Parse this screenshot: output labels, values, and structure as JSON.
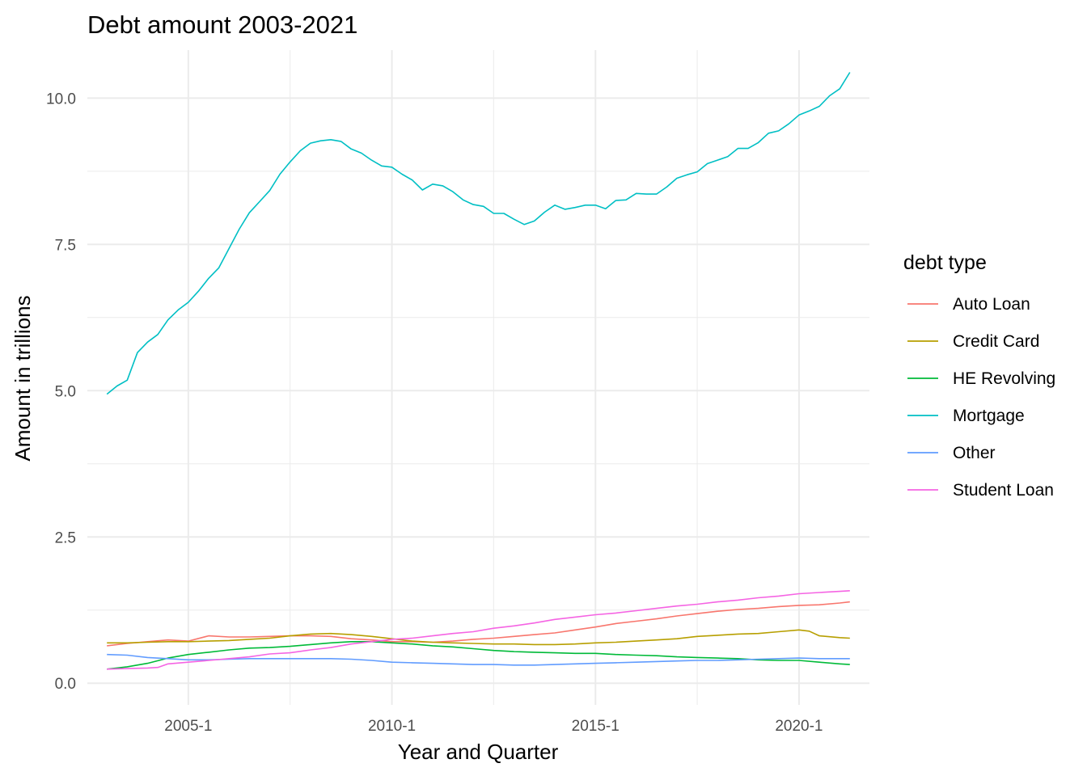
{
  "chart_data": {
    "type": "line",
    "title": "Debt amount 2003-2021",
    "xlabel": "Year and Quarter",
    "ylabel": "Amount in trillions",
    "legend_title": "debt type",
    "legend_position": "right",
    "grid": true,
    "x_range": [
      2003.0,
      2021.25
    ],
    "ylim": [
      0.0,
      10.45
    ],
    "x_ticks": [
      {
        "value": 2005.0,
        "label": "2005-1"
      },
      {
        "value": 2010.0,
        "label": "2010-1"
      },
      {
        "value": 2015.0,
        "label": "2015-1"
      },
      {
        "value": 2020.0,
        "label": "2020-1"
      }
    ],
    "y_ticks": [
      {
        "value": 0.0,
        "label": "0.0"
      },
      {
        "value": 2.5,
        "label": "2.5"
      },
      {
        "value": 5.0,
        "label": "5.0"
      },
      {
        "value": 7.5,
        "label": "7.5"
      },
      {
        "value": 10.0,
        "label": "10.0"
      }
    ],
    "series": [
      {
        "name": "Auto Loan",
        "color": "#F8766D",
        "points": [
          [
            2003.0,
            0.64
          ],
          [
            2003.5,
            0.68
          ],
          [
            2004.0,
            0.71
          ],
          [
            2004.5,
            0.74
          ],
          [
            2005.0,
            0.72
          ],
          [
            2005.5,
            0.81
          ],
          [
            2006.0,
            0.79
          ],
          [
            2006.5,
            0.79
          ],
          [
            2007.0,
            0.8
          ],
          [
            2007.5,
            0.81
          ],
          [
            2008.0,
            0.81
          ],
          [
            2008.5,
            0.8
          ],
          [
            2009.0,
            0.76
          ],
          [
            2009.5,
            0.74
          ],
          [
            2010.0,
            0.71
          ],
          [
            2010.5,
            0.71
          ],
          [
            2011.0,
            0.7
          ],
          [
            2011.5,
            0.72
          ],
          [
            2012.0,
            0.75
          ],
          [
            2012.5,
            0.77
          ],
          [
            2013.0,
            0.8
          ],
          [
            2013.5,
            0.83
          ],
          [
            2014.0,
            0.86
          ],
          [
            2014.5,
            0.91
          ],
          [
            2015.0,
            0.96
          ],
          [
            2015.5,
            1.02
          ],
          [
            2016.0,
            1.06
          ],
          [
            2016.5,
            1.1
          ],
          [
            2017.0,
            1.15
          ],
          [
            2017.5,
            1.19
          ],
          [
            2018.0,
            1.23
          ],
          [
            2018.5,
            1.26
          ],
          [
            2019.0,
            1.28
          ],
          [
            2019.5,
            1.31
          ],
          [
            2020.0,
            1.33
          ],
          [
            2020.5,
            1.34
          ],
          [
            2021.0,
            1.37
          ],
          [
            2021.25,
            1.39
          ]
        ]
      },
      {
        "name": "Credit Card",
        "color": "#B79F00",
        "points": [
          [
            2003.0,
            0.69
          ],
          [
            2003.5,
            0.69
          ],
          [
            2004.0,
            0.7
          ],
          [
            2004.5,
            0.71
          ],
          [
            2005.0,
            0.71
          ],
          [
            2005.5,
            0.72
          ],
          [
            2006.0,
            0.73
          ],
          [
            2006.5,
            0.75
          ],
          [
            2007.0,
            0.77
          ],
          [
            2007.5,
            0.81
          ],
          [
            2008.0,
            0.84
          ],
          [
            2008.5,
            0.85
          ],
          [
            2009.0,
            0.83
          ],
          [
            2009.5,
            0.8
          ],
          [
            2010.0,
            0.76
          ],
          [
            2010.5,
            0.72
          ],
          [
            2011.0,
            0.7
          ],
          [
            2011.5,
            0.69
          ],
          [
            2012.0,
            0.68
          ],
          [
            2012.5,
            0.67
          ],
          [
            2013.0,
            0.67
          ],
          [
            2013.5,
            0.66
          ],
          [
            2014.0,
            0.66
          ],
          [
            2014.5,
            0.67
          ],
          [
            2015.0,
            0.69
          ],
          [
            2015.5,
            0.7
          ],
          [
            2016.0,
            0.72
          ],
          [
            2016.5,
            0.74
          ],
          [
            2017.0,
            0.76
          ],
          [
            2017.5,
            0.8
          ],
          [
            2018.0,
            0.82
          ],
          [
            2018.5,
            0.84
          ],
          [
            2019.0,
            0.85
          ],
          [
            2019.5,
            0.88
          ],
          [
            2020.0,
            0.91
          ],
          [
            2020.25,
            0.89
          ],
          [
            2020.5,
            0.81
          ],
          [
            2021.0,
            0.78
          ],
          [
            2021.25,
            0.77
          ]
        ]
      },
      {
        "name": "HE Revolving",
        "color": "#00BA38",
        "points": [
          [
            2003.0,
            0.24
          ],
          [
            2003.5,
            0.28
          ],
          [
            2004.0,
            0.34
          ],
          [
            2004.5,
            0.43
          ],
          [
            2005.0,
            0.49
          ],
          [
            2005.5,
            0.53
          ],
          [
            2006.0,
            0.57
          ],
          [
            2006.5,
            0.6
          ],
          [
            2007.0,
            0.61
          ],
          [
            2007.5,
            0.63
          ],
          [
            2008.0,
            0.66
          ],
          [
            2008.5,
            0.69
          ],
          [
            2009.0,
            0.71
          ],
          [
            2009.5,
            0.71
          ],
          [
            2010.0,
            0.69
          ],
          [
            2010.5,
            0.67
          ],
          [
            2011.0,
            0.64
          ],
          [
            2011.5,
            0.62
          ],
          [
            2012.0,
            0.59
          ],
          [
            2012.5,
            0.56
          ],
          [
            2013.0,
            0.54
          ],
          [
            2013.5,
            0.53
          ],
          [
            2014.0,
            0.52
          ],
          [
            2014.5,
            0.51
          ],
          [
            2015.0,
            0.51
          ],
          [
            2015.5,
            0.49
          ],
          [
            2016.0,
            0.48
          ],
          [
            2016.5,
            0.47
          ],
          [
            2017.0,
            0.45
          ],
          [
            2017.5,
            0.44
          ],
          [
            2018.0,
            0.43
          ],
          [
            2018.5,
            0.42
          ],
          [
            2019.0,
            0.4
          ],
          [
            2019.5,
            0.39
          ],
          [
            2020.0,
            0.39
          ],
          [
            2020.5,
            0.36
          ],
          [
            2021.0,
            0.33
          ],
          [
            2021.25,
            0.32
          ]
        ]
      },
      {
        "name": "Mortgage",
        "color": "#00BFC4",
        "points": [
          [
            2003.0,
            4.94
          ],
          [
            2003.25,
            5.08
          ],
          [
            2003.5,
            5.18
          ],
          [
            2003.75,
            5.65
          ],
          [
            2004.0,
            5.83
          ],
          [
            2004.25,
            5.96
          ],
          [
            2004.5,
            6.21
          ],
          [
            2004.75,
            6.38
          ],
          [
            2005.0,
            6.51
          ],
          [
            2005.25,
            6.7
          ],
          [
            2005.5,
            6.92
          ],
          [
            2005.75,
            7.1
          ],
          [
            2006.0,
            7.43
          ],
          [
            2006.25,
            7.76
          ],
          [
            2006.5,
            8.04
          ],
          [
            2006.75,
            8.23
          ],
          [
            2007.0,
            8.42
          ],
          [
            2007.25,
            8.7
          ],
          [
            2007.5,
            8.91
          ],
          [
            2007.75,
            9.1
          ],
          [
            2008.0,
            9.23
          ],
          [
            2008.25,
            9.27
          ],
          [
            2008.5,
            9.29
          ],
          [
            2008.75,
            9.26
          ],
          [
            2009.0,
            9.13
          ],
          [
            2009.25,
            9.06
          ],
          [
            2009.5,
            8.94
          ],
          [
            2009.75,
            8.84
          ],
          [
            2010.0,
            8.82
          ],
          [
            2010.25,
            8.7
          ],
          [
            2010.5,
            8.6
          ],
          [
            2010.75,
            8.43
          ],
          [
            2011.0,
            8.53
          ],
          [
            2011.25,
            8.5
          ],
          [
            2011.5,
            8.4
          ],
          [
            2011.75,
            8.26
          ],
          [
            2012.0,
            8.18
          ],
          [
            2012.25,
            8.15
          ],
          [
            2012.5,
            8.03
          ],
          [
            2012.75,
            8.03
          ],
          [
            2013.0,
            7.93
          ],
          [
            2013.25,
            7.84
          ],
          [
            2013.5,
            7.9
          ],
          [
            2013.75,
            8.05
          ],
          [
            2014.0,
            8.17
          ],
          [
            2014.25,
            8.1
          ],
          [
            2014.5,
            8.13
          ],
          [
            2014.75,
            8.17
          ],
          [
            2015.0,
            8.17
          ],
          [
            2015.25,
            8.11
          ],
          [
            2015.5,
            8.25
          ],
          [
            2015.75,
            8.26
          ],
          [
            2016.0,
            8.37
          ],
          [
            2016.25,
            8.36
          ],
          [
            2016.5,
            8.36
          ],
          [
            2016.75,
            8.48
          ],
          [
            2017.0,
            8.63
          ],
          [
            2017.25,
            8.69
          ],
          [
            2017.5,
            8.74
          ],
          [
            2017.75,
            8.88
          ],
          [
            2018.0,
            8.94
          ],
          [
            2018.25,
            9.0
          ],
          [
            2018.5,
            9.14
          ],
          [
            2018.75,
            9.14
          ],
          [
            2019.0,
            9.24
          ],
          [
            2019.25,
            9.4
          ],
          [
            2019.5,
            9.44
          ],
          [
            2019.75,
            9.56
          ],
          [
            2020.0,
            9.71
          ],
          [
            2020.25,
            9.78
          ],
          [
            2020.5,
            9.86
          ],
          [
            2020.75,
            10.04
          ],
          [
            2021.0,
            10.16
          ],
          [
            2021.25,
            10.44
          ]
        ]
      },
      {
        "name": "Other",
        "color": "#619CFF",
        "points": [
          [
            2003.0,
            0.49
          ],
          [
            2003.5,
            0.48
          ],
          [
            2004.0,
            0.44
          ],
          [
            2004.5,
            0.42
          ],
          [
            2005.0,
            0.4
          ],
          [
            2005.5,
            0.4
          ],
          [
            2006.0,
            0.41
          ],
          [
            2006.5,
            0.42
          ],
          [
            2007.0,
            0.42
          ],
          [
            2007.5,
            0.42
          ],
          [
            2008.0,
            0.42
          ],
          [
            2008.5,
            0.42
          ],
          [
            2009.0,
            0.41
          ],
          [
            2009.5,
            0.39
          ],
          [
            2010.0,
            0.36
          ],
          [
            2010.5,
            0.35
          ],
          [
            2011.0,
            0.34
          ],
          [
            2011.5,
            0.33
          ],
          [
            2012.0,
            0.32
          ],
          [
            2012.5,
            0.32
          ],
          [
            2013.0,
            0.31
          ],
          [
            2013.5,
            0.31
          ],
          [
            2014.0,
            0.32
          ],
          [
            2014.5,
            0.33
          ],
          [
            2015.0,
            0.34
          ],
          [
            2015.5,
            0.35
          ],
          [
            2016.0,
            0.36
          ],
          [
            2016.5,
            0.37
          ],
          [
            2017.0,
            0.38
          ],
          [
            2017.5,
            0.39
          ],
          [
            2018.0,
            0.39
          ],
          [
            2018.5,
            0.4
          ],
          [
            2019.0,
            0.41
          ],
          [
            2019.5,
            0.42
          ],
          [
            2020.0,
            0.43
          ],
          [
            2020.5,
            0.42
          ],
          [
            2021.0,
            0.42
          ],
          [
            2021.25,
            0.42
          ]
        ]
      },
      {
        "name": "Student Loan",
        "color": "#F564E3",
        "points": [
          [
            2003.0,
            0.24
          ],
          [
            2003.5,
            0.25
          ],
          [
            2004.0,
            0.26
          ],
          [
            2004.25,
            0.27
          ],
          [
            2004.5,
            0.33
          ],
          [
            2005.0,
            0.36
          ],
          [
            2005.5,
            0.39
          ],
          [
            2006.0,
            0.42
          ],
          [
            2006.5,
            0.45
          ],
          [
            2007.0,
            0.5
          ],
          [
            2007.5,
            0.52
          ],
          [
            2008.0,
            0.57
          ],
          [
            2008.5,
            0.61
          ],
          [
            2009.0,
            0.67
          ],
          [
            2009.5,
            0.71
          ],
          [
            2010.0,
            0.75
          ],
          [
            2010.5,
            0.77
          ],
          [
            2011.0,
            0.81
          ],
          [
            2011.5,
            0.85
          ],
          [
            2012.0,
            0.88
          ],
          [
            2012.5,
            0.94
          ],
          [
            2013.0,
            0.98
          ],
          [
            2013.5,
            1.03
          ],
          [
            2014.0,
            1.09
          ],
          [
            2014.5,
            1.13
          ],
          [
            2015.0,
            1.17
          ],
          [
            2015.5,
            1.2
          ],
          [
            2016.0,
            1.24
          ],
          [
            2016.5,
            1.28
          ],
          [
            2017.0,
            1.32
          ],
          [
            2017.5,
            1.35
          ],
          [
            2018.0,
            1.39
          ],
          [
            2018.5,
            1.42
          ],
          [
            2019.0,
            1.46
          ],
          [
            2019.5,
            1.49
          ],
          [
            2020.0,
            1.53
          ],
          [
            2020.5,
            1.55
          ],
          [
            2021.0,
            1.57
          ],
          [
            2021.25,
            1.58
          ]
        ]
      }
    ]
  }
}
